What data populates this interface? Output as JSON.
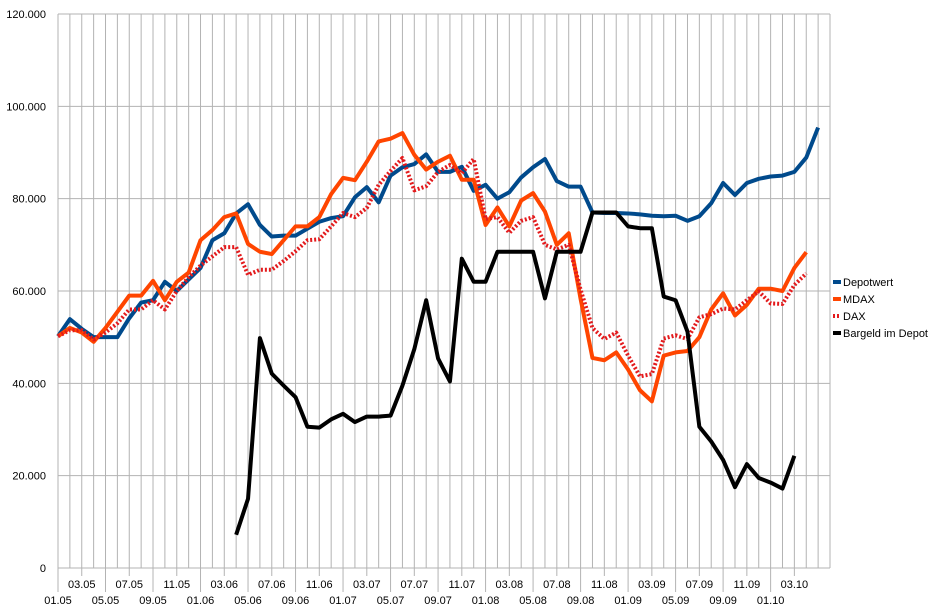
{
  "chart_data": {
    "type": "line",
    "title": "",
    "xlabel": "",
    "ylabel": "",
    "ylim": [
      0,
      120000
    ],
    "y_ticks": [
      {
        "value": 0,
        "label": "0"
      },
      {
        "value": 20000,
        "label": "20.000"
      },
      {
        "value": 40000,
        "label": "40.000"
      },
      {
        "value": 60000,
        "label": "60.000"
      },
      {
        "value": 80000,
        "label": "80.000"
      },
      {
        "value": 100000,
        "label": "100.000"
      },
      {
        "value": 120000,
        "label": "120.000"
      }
    ],
    "x_count": 66,
    "x_labels": [
      {
        "index": 0,
        "label": "01.05"
      },
      {
        "index": 2,
        "label": "03.05"
      },
      {
        "index": 4,
        "label": "05.05"
      },
      {
        "index": 6,
        "label": "07.05"
      },
      {
        "index": 8,
        "label": "09.05"
      },
      {
        "index": 10,
        "label": "11.05"
      },
      {
        "index": 12,
        "label": "01.06"
      },
      {
        "index": 14,
        "label": "03.06"
      },
      {
        "index": 16,
        "label": "05.06"
      },
      {
        "index": 18,
        "label": "07.06"
      },
      {
        "index": 20,
        "label": "09.06"
      },
      {
        "index": 22,
        "label": "11.06"
      },
      {
        "index": 24,
        "label": "01.07"
      },
      {
        "index": 26,
        "label": "03.07"
      },
      {
        "index": 28,
        "label": "05.07"
      },
      {
        "index": 30,
        "label": "07.07"
      },
      {
        "index": 32,
        "label": "09.07"
      },
      {
        "index": 34,
        "label": "11.07"
      },
      {
        "index": 36,
        "label": "01.08"
      },
      {
        "index": 38,
        "label": "03.08"
      },
      {
        "index": 40,
        "label": "05.08"
      },
      {
        "index": 42,
        "label": "07.08"
      },
      {
        "index": 44,
        "label": "09.08"
      },
      {
        "index": 46,
        "label": "11.08"
      },
      {
        "index": 48,
        "label": "01.09"
      },
      {
        "index": 50,
        "label": "03.09"
      },
      {
        "index": 52,
        "label": "05.09"
      },
      {
        "index": 54,
        "label": "07.09"
      },
      {
        "index": 56,
        "label": "09.09"
      },
      {
        "index": 58,
        "label": "11.09"
      },
      {
        "index": 60,
        "label": "01.10"
      },
      {
        "index": 62,
        "label": "03.10"
      }
    ],
    "grid": {
      "vertical": true,
      "horizontal": true
    },
    "legend_position": "right",
    "series": [
      {
        "name": "Depotwert",
        "color": "#004a8c",
        "style": "solid",
        "values": [
          50200,
          53900,
          51800,
          50000,
          50000,
          50000,
          54100,
          57500,
          58000,
          62000,
          60000,
          62500,
          65000,
          71000,
          72500,
          76800,
          78800,
          74300,
          71800,
          72000,
          72000,
          73500,
          75000,
          75800,
          76200,
          80300,
          82500,
          79200,
          85000,
          86800,
          87500,
          89600,
          85800,
          85800,
          86900,
          81700,
          83000,
          80000,
          81400,
          84600,
          86800,
          88600,
          83800,
          82600,
          82600,
          77000,
          76900,
          76900,
          76800,
          76600,
          76300,
          76200,
          76300,
          75200,
          76200,
          79000,
          83400,
          80800,
          83400,
          84300,
          84800,
          85000,
          85800,
          88900,
          95400,
          null
        ]
      },
      {
        "name": "MDAX",
        "color": "#ff4500",
        "style": "solid",
        "values": [
          50200,
          52000,
          51000,
          49000,
          52000,
          55500,
          59000,
          59000,
          62200,
          58000,
          62000,
          64000,
          71000,
          73200,
          76000,
          76800,
          70200,
          68500,
          68000,
          71000,
          74000,
          74000,
          76000,
          81000,
          84500,
          84000,
          88000,
          92400,
          93000,
          94200,
          89500,
          86300,
          88000,
          89300,
          84100,
          84100,
          74300,
          78100,
          74000,
          79600,
          81200,
          77200,
          70000,
          72500,
          58300,
          45500,
          45000,
          46700,
          43000,
          38500,
          36100,
          46000,
          46700,
          47000,
          50000,
          56000,
          59500,
          54700,
          57000,
          60500,
          60500,
          60000,
          65000,
          68400,
          null,
          null
        ]
      },
      {
        "name": "DAX",
        "color": "#e31a1c",
        "style": "dotted",
        "values": [
          50200,
          51500,
          51500,
          49500,
          51000,
          53000,
          56000,
          56000,
          58000,
          56000,
          60000,
          63000,
          65500,
          67500,
          69500,
          69500,
          63500,
          64600,
          64600,
          66500,
          68600,
          71000,
          71200,
          74000,
          76900,
          76000,
          78000,
          83000,
          86000,
          88800,
          81800,
          82700,
          85800,
          87300,
          85500,
          88600,
          75600,
          76000,
          72600,
          75200,
          76000,
          70000,
          69000,
          70000,
          60300,
          52000,
          49600,
          51000,
          46000,
          41500,
          42000,
          49700,
          50400,
          49600,
          54300,
          55000,
          56200,
          56000,
          58000,
          59900,
          57300,
          57200,
          61300,
          63800,
          null,
          null
        ]
      },
      {
        "name": "Bargeld im Depot",
        "color": "#000000",
        "style": "solid",
        "values": [
          null,
          null,
          null,
          null,
          null,
          null,
          null,
          null,
          null,
          null,
          null,
          null,
          null,
          null,
          null,
          7200,
          15000,
          49800,
          42100,
          39500,
          37000,
          30600,
          30400,
          32200,
          33400,
          31600,
          32800,
          32800,
          33000,
          39500,
          47400,
          58000,
          45400,
          40400,
          67000,
          62000,
          62000,
          68500,
          68500,
          68500,
          68500,
          58400,
          68500,
          68500,
          68500,
          77000,
          77000,
          77000,
          74000,
          73600,
          73600,
          58800,
          58000,
          51200,
          30600,
          27400,
          23400,
          17500,
          22500,
          19500,
          18500,
          17200,
          24300,
          null,
          null,
          null
        ]
      }
    ]
  }
}
